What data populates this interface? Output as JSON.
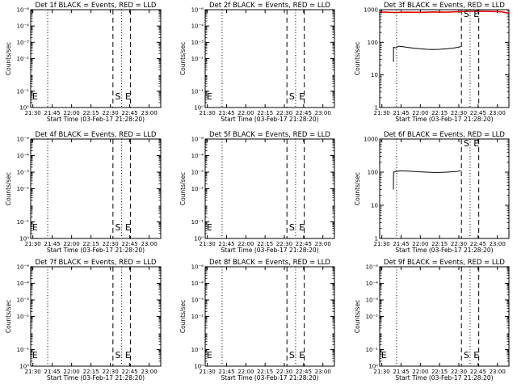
{
  "page": {
    "background": "#ffffff",
    "ink": "#000000"
  },
  "chart_data": [
    {
      "type": "line",
      "title": "Det 1f BLACK = Events, RED = LLD",
      "xlabel": "Start Time (03-Feb-17 21:28:20)",
      "ylabel": "Counts/sec",
      "xlim": [
        "21:28:20",
        "23:09:00"
      ],
      "x_ticks": [
        "21:30",
        "21:45",
        "22:00",
        "22:15",
        "22:30",
        "22:45",
        "23:00"
      ],
      "y_scale": "log",
      "ylim": [
        1,
        1000000
      ],
      "y_ticks": [
        {
          "v": 1,
          "label": "10⁰"
        },
        {
          "v": 10,
          "label": "10⁻¹"
        },
        {
          "v": 1000,
          "label": "10⁻²"
        },
        {
          "v": 10000,
          "label": "10⁻³"
        },
        {
          "v": 100000,
          "label": "10⁻⁴"
        },
        {
          "v": 1000000,
          "label": "10⁻⁶"
        }
      ],
      "dotted_lines": [
        "21:41:30",
        "22:38:45"
      ],
      "dashed_lines": [
        "22:32:00",
        "22:45:30"
      ],
      "markers": [
        {
          "text": "E",
          "x": "21:29:30"
        },
        {
          "text": "S",
          "x": "22:33:40"
        },
        {
          "text": "E",
          "x": "22:41:30"
        }
      ],
      "series": []
    },
    {
      "type": "line",
      "title": "Det 2f BLACK = Events, RED = LLD",
      "xlabel": "Start Time (03-Feb-17 21:28:20)",
      "ylabel": "Counts/sec",
      "xlim": [
        "21:28:20",
        "23:09:00"
      ],
      "x_ticks": [
        "21:30",
        "21:45",
        "22:00",
        "22:15",
        "22:30",
        "22:45",
        "23:00"
      ],
      "y_scale": "log",
      "ylim": [
        1,
        1000000
      ],
      "y_ticks": [
        {
          "v": 1,
          "label": "10⁰"
        },
        {
          "v": 10,
          "label": "10⁻¹"
        },
        {
          "v": 1000,
          "label": "10⁻²"
        },
        {
          "v": 10000,
          "label": "10⁻³"
        },
        {
          "v": 100000,
          "label": "10⁻⁴"
        },
        {
          "v": 1000000,
          "label": "10⁻⁶"
        }
      ],
      "dotted_lines": [
        "21:41:30",
        "22:38:45"
      ],
      "dashed_lines": [
        "22:32:00",
        "22:45:30"
      ],
      "markers": [
        {
          "text": "E",
          "x": "21:29:30"
        },
        {
          "text": "S",
          "x": "22:33:40"
        },
        {
          "text": "E",
          "x": "22:41:30"
        }
      ],
      "series": []
    },
    {
      "type": "line",
      "title": "Det 3f BLACK = Events, RED = LLD",
      "xlabel": "Start Time (03-Feb-17 21:28:20)",
      "ylabel": "Counts/sec",
      "xlim": [
        "21:28:20",
        "23:09:00"
      ],
      "x_ticks": [
        "21:30",
        "21:45",
        "22:00",
        "22:15",
        "22:30",
        "22:45",
        "23:00"
      ],
      "y_scale": "log",
      "ylim": [
        1,
        1000
      ],
      "y_ticks": [
        {
          "v": 1,
          "label": "1"
        },
        {
          "v": 10,
          "label": "10"
        },
        {
          "v": 100,
          "label": "100"
        },
        {
          "v": 1000,
          "label": "1000"
        }
      ],
      "dotted_lines": [
        "21:41:30",
        "22:38:45"
      ],
      "dashed_lines": [
        "22:32:00",
        "22:45:30"
      ],
      "markers": [
        {
          "text": "S",
          "x": "22:33:40"
        },
        {
          "text": "E",
          "x": "22:41:30"
        }
      ],
      "series": [
        {
          "color": "#000000",
          "points": [
            [
              "21:39:00",
              25
            ],
            [
              "21:39:10",
              70
            ],
            [
              "21:41:00",
              68
            ],
            [
              "21:43:00",
              76
            ],
            [
              "21:46:00",
              74
            ],
            [
              "21:50:00",
              70
            ],
            [
              "21:55:00",
              66
            ],
            [
              "22:00:00",
              63
            ],
            [
              "22:05:00",
              61
            ],
            [
              "22:10:00",
              60
            ],
            [
              "22:15:00",
              61
            ],
            [
              "22:20:00",
              63
            ],
            [
              "22:25:00",
              66
            ],
            [
              "22:29:00",
              70
            ],
            [
              "22:31:30",
              74
            ]
          ]
        },
        {
          "color": "#e00000",
          "points": [
            [
              "21:28:20",
              850
            ],
            [
              "21:40:00",
              820
            ],
            [
              "21:50:00",
              840
            ],
            [
              "22:00:00",
              830
            ],
            [
              "22:10:00",
              850
            ],
            [
              "22:20:00",
              840
            ],
            [
              "22:31:00",
              870
            ],
            [
              "22:36:00",
              890
            ],
            [
              "22:45:00",
              900
            ],
            [
              "22:55:00",
              880
            ],
            [
              "23:03:00",
              860
            ],
            [
              "23:09:00",
              780
            ]
          ]
        }
      ]
    },
    {
      "type": "line",
      "title": "Det 4f BLACK = Events, RED = LLD",
      "xlabel": "Start Time (03-Feb-17 21:28:20)",
      "ylabel": "Counts/sec",
      "xlim": [
        "21:28:20",
        "23:09:00"
      ],
      "x_ticks": [
        "21:30",
        "21:45",
        "22:00",
        "22:15",
        "22:30",
        "22:45",
        "23:00"
      ],
      "y_scale": "log",
      "ylim": [
        1,
        1000000
      ],
      "y_ticks": [
        {
          "v": 1,
          "label": "10⁰"
        },
        {
          "v": 10,
          "label": "10⁻¹"
        },
        {
          "v": 1000,
          "label": "10⁻²"
        },
        {
          "v": 10000,
          "label": "10⁻³"
        },
        {
          "v": 100000,
          "label": "10⁻⁴"
        },
        {
          "v": 1000000,
          "label": "10⁻⁶"
        }
      ],
      "dotted_lines": [
        "21:41:30",
        "22:38:45"
      ],
      "dashed_lines": [
        "22:32:00",
        "22:45:30"
      ],
      "markers": [
        {
          "text": "E",
          "x": "21:29:30"
        },
        {
          "text": "S",
          "x": "22:33:40"
        },
        {
          "text": "E",
          "x": "22:41:30"
        }
      ],
      "series": []
    },
    {
      "type": "line",
      "title": "Det 5f BLACK = Events, RED = LLD",
      "xlabel": "Start Time (03-Feb-17 21:28:20)",
      "ylabel": "Counts/sec",
      "xlim": [
        "21:28:20",
        "23:09:00"
      ],
      "x_ticks": [
        "21:30",
        "21:45",
        "22:00",
        "22:15",
        "22:30",
        "22:45",
        "23:00"
      ],
      "y_scale": "log",
      "ylim": [
        1,
        1000000
      ],
      "y_ticks": [
        {
          "v": 1,
          "label": "10⁰"
        },
        {
          "v": 10,
          "label": "10⁻¹"
        },
        {
          "v": 1000,
          "label": "10⁻²"
        },
        {
          "v": 10000,
          "label": "10⁻³"
        },
        {
          "v": 100000,
          "label": "10⁻⁴"
        },
        {
          "v": 1000000,
          "label": "10⁻⁶"
        }
      ],
      "dotted_lines": [
        "21:41:30",
        "22:38:45"
      ],
      "dashed_lines": [
        "22:32:00",
        "22:45:30"
      ],
      "markers": [
        {
          "text": "E",
          "x": "21:29:30"
        },
        {
          "text": "S",
          "x": "22:33:40"
        },
        {
          "text": "E",
          "x": "22:41:30"
        }
      ],
      "series": []
    },
    {
      "type": "line",
      "title": "Det 6f BLACK = Events, RED = LLD",
      "xlabel": "Start Time (03-Feb-17 21:28:20)",
      "ylabel": "Counts/sec",
      "xlim": [
        "21:28:20",
        "23:09:00"
      ],
      "x_ticks": [
        "21:30",
        "21:45",
        "22:00",
        "22:15",
        "22:30",
        "22:45",
        "23:00"
      ],
      "y_scale": "log",
      "ylim": [
        1,
        1000
      ],
      "y_ticks": [
        {
          "v": 1,
          "label": "1"
        },
        {
          "v": 10,
          "label": "10"
        },
        {
          "v": 100,
          "label": "100"
        },
        {
          "v": 1000,
          "label": "1000"
        }
      ],
      "dotted_lines": [
        "21:41:30",
        "22:38:45"
      ],
      "dashed_lines": [
        "22:32:00",
        "22:45:30"
      ],
      "markers": [
        {
          "text": "S",
          "x": "22:33:40"
        },
        {
          "text": "E",
          "x": "22:41:30"
        }
      ],
      "series": [
        {
          "color": "#000000",
          "points": [
            [
              "21:39:00",
              30
            ],
            [
              "21:39:10",
              100
            ],
            [
              "21:41:00",
              105
            ],
            [
              "21:45:00",
              110
            ],
            [
              "21:50:00",
              108
            ],
            [
              "21:55:00",
              105
            ],
            [
              "22:00:00",
              102
            ],
            [
              "22:05:00",
              100
            ],
            [
              "22:10:00",
              98
            ],
            [
              "22:15:00",
              98
            ],
            [
              "22:20:00",
              100
            ],
            [
              "22:25:00",
              103
            ],
            [
              "22:29:00",
              106
            ],
            [
              "22:31:30",
              112
            ]
          ]
        }
      ]
    },
    {
      "type": "line",
      "title": "Det 7f BLACK = Events, RED = LLD",
      "xlabel": "Start Time (03-Feb-17 21:28:20)",
      "ylabel": "Counts/sec",
      "xlim": [
        "21:28:20",
        "23:09:00"
      ],
      "x_ticks": [
        "21:30",
        "21:45",
        "22:00",
        "22:15",
        "22:30",
        "22:45",
        "23:00"
      ],
      "y_scale": "log",
      "ylim": [
        1,
        1000000
      ],
      "y_ticks": [
        {
          "v": 1,
          "label": "10⁰"
        },
        {
          "v": 10,
          "label": "10⁻¹"
        },
        {
          "v": 1000,
          "label": "10⁻²"
        },
        {
          "v": 10000,
          "label": "10⁻³"
        },
        {
          "v": 100000,
          "label": "10⁻⁴"
        },
        {
          "v": 1000000,
          "label": "10⁻⁶"
        }
      ],
      "dotted_lines": [
        "21:41:30",
        "22:38:45"
      ],
      "dashed_lines": [
        "22:32:00",
        "22:45:30"
      ],
      "markers": [
        {
          "text": "E",
          "x": "21:29:30"
        },
        {
          "text": "S",
          "x": "22:33:40"
        },
        {
          "text": "E",
          "x": "22:41:30"
        }
      ],
      "series": []
    },
    {
      "type": "line",
      "title": "Det 8f BLACK = Events, RED = LLD",
      "xlabel": "Start Time (03-Feb-17 21:28:20)",
      "ylabel": "Counts/sec",
      "xlim": [
        "21:28:20",
        "23:09:00"
      ],
      "x_ticks": [
        "21:30",
        "21:45",
        "22:00",
        "22:15",
        "22:30",
        "22:45",
        "23:00"
      ],
      "y_scale": "log",
      "ylim": [
        1,
        1000000
      ],
      "y_ticks": [
        {
          "v": 1,
          "label": "10⁰"
        },
        {
          "v": 10,
          "label": "10⁻¹"
        },
        {
          "v": 1000,
          "label": "10⁻²"
        },
        {
          "v": 10000,
          "label": "10⁻³"
        },
        {
          "v": 100000,
          "label": "10⁻⁴"
        },
        {
          "v": 1000000,
          "label": "10⁻⁶"
        }
      ],
      "dotted_lines": [
        "21:41:30",
        "22:38:45"
      ],
      "dashed_lines": [
        "22:32:00",
        "22:45:30"
      ],
      "markers": [
        {
          "text": "E",
          "x": "21:29:30"
        },
        {
          "text": "S",
          "x": "22:33:40"
        },
        {
          "text": "E",
          "x": "22:41:30"
        }
      ],
      "series": []
    },
    {
      "type": "line",
      "title": "Det 9f BLACK = Events, RED = LLD",
      "xlabel": "Start Time (03-Feb-17 21:28:20)",
      "ylabel": "Counts/sec",
      "xlim": [
        "21:28:20",
        "23:09:00"
      ],
      "x_ticks": [
        "21:30",
        "21:45",
        "22:00",
        "22:15",
        "22:30",
        "22:45",
        "23:00"
      ],
      "y_scale": "log",
      "ylim": [
        1,
        1000000
      ],
      "y_ticks": [
        {
          "v": 1,
          "label": "10⁰"
        },
        {
          "v": 10,
          "label": "10⁻¹"
        },
        {
          "v": 1000,
          "label": "10⁻²"
        },
        {
          "v": 10000,
          "label": "10⁻³"
        },
        {
          "v": 100000,
          "label": "10⁻⁴"
        },
        {
          "v": 1000000,
          "label": "10⁻⁶"
        }
      ],
      "dotted_lines": [
        "21:41:30",
        "22:38:45"
      ],
      "dashed_lines": [
        "22:32:00",
        "22:45:30"
      ],
      "markers": [
        {
          "text": "E",
          "x": "21:29:30"
        },
        {
          "text": "S",
          "x": "22:33:40"
        },
        {
          "text": "E",
          "x": "22:41:30"
        }
      ],
      "series": []
    }
  ]
}
